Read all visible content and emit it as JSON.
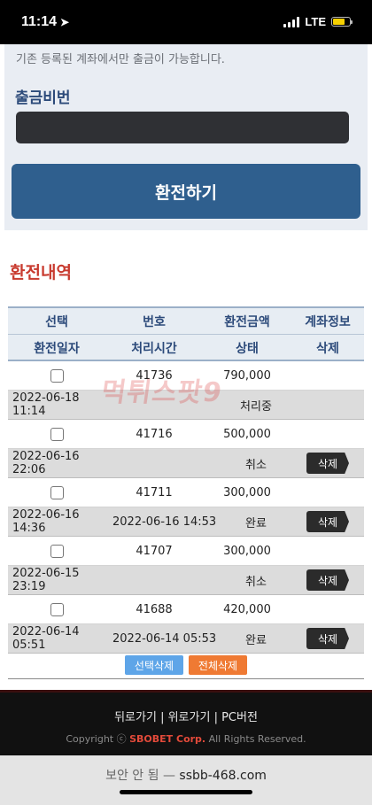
{
  "status_bar": {
    "time": "11:14",
    "network": "LTE"
  },
  "form": {
    "notice": "기존 등록된 계좌에서만 출금이 가능합니다.",
    "password_label": "출금비번",
    "exchange_button": "환전하기"
  },
  "history": {
    "title": "환전내역",
    "headers_row1": [
      "선택",
      "번호",
      "환전금액",
      "계좌정보"
    ],
    "headers_row2": [
      "환전일자",
      "처리시간",
      "상태",
      "삭제"
    ],
    "entries": [
      {
        "no": "41736",
        "amount": "790,000",
        "date": "2022-06-18 11:14",
        "processed": "",
        "status": "처리중",
        "delete": ""
      },
      {
        "no": "41716",
        "amount": "500,000",
        "date": "2022-06-16 22:06",
        "processed": "",
        "status": "취소",
        "delete": "삭제"
      },
      {
        "no": "41711",
        "amount": "300,000",
        "date": "2022-06-16 14:36",
        "processed": "2022-06-16 14:53",
        "status": "완료",
        "delete": "삭제"
      },
      {
        "no": "41707",
        "amount": "300,000",
        "date": "2022-06-15 23:19",
        "processed": "",
        "status": "취소",
        "delete": "삭제"
      },
      {
        "no": "41688",
        "amount": "420,000",
        "date": "2022-06-14 05:51",
        "processed": "2022-06-14 05:53",
        "status": "완료",
        "delete": "삭제"
      }
    ],
    "select_delete": "선택삭제",
    "delete_all": "전체삭제"
  },
  "watermark": "먹튀스팟9",
  "footer": {
    "links": [
      "뒤로가기",
      "위로가기",
      "PC버전"
    ],
    "copyright_prefix": "Copyright ⓒ ",
    "copyright_brand": "SBOBET Corp.",
    "copyright_suffix": " All Rights Reserved."
  },
  "browser": {
    "security": "보안 안 됨",
    "separator": " — ",
    "url": "ssbb-468.com"
  },
  "colors": {
    "accent_red": "#c83a2e",
    "button_blue": "#2f5f8e",
    "select_blue": "#5ea5e8",
    "delete_all_orange": "#ef7a33"
  }
}
